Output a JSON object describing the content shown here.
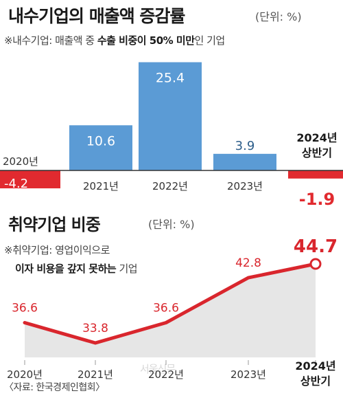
{
  "header": {
    "title1": "내수기업의 매출액 증감률",
    "unit1": "(단위: %)",
    "note1_prefix": "※내수기업: 매출액 중 ",
    "note1_bold": "수출 비중이 50% 미만",
    "note1_suffix": "인 기업",
    "title2": "취약기업 비중",
    "unit2": "(단위: %)",
    "note2_line1": "※취약기업: 영업이익으로",
    "note2_line2_bold": "이자 비용을 갚지 못하는",
    "note2_line2_suffix": " 기업",
    "source": "〈자료: 한국경제인협회〉",
    "watermark": "서울신문"
  },
  "colors": {
    "bar_blue": "#5b9bd5",
    "bar_red": "#e12a2f",
    "line_red": "#d9262d",
    "area_gray": "#e6e6e6",
    "axis": "#333333"
  },
  "chart_data": [
    {
      "type": "bar",
      "title": "내수기업의 매출액 증감률",
      "unit": "(단위: %)",
      "categories": [
        "2020년",
        "2021년",
        "2022년",
        "2023년",
        "2024년 상반기"
      ],
      "values": [
        -4.2,
        10.6,
        25.4,
        3.9,
        -1.9
      ],
      "value_labels": [
        "-4.2",
        "10.6",
        "25.4",
        "3.9",
        "-1.9"
      ],
      "highlight": [
        false,
        false,
        false,
        false,
        true
      ],
      "axis_at": 0,
      "grid": false,
      "legend": "none"
    },
    {
      "type": "area",
      "title": "취약기업 비중",
      "unit": "(단위: %)",
      "categories": [
        "2020년",
        "2021년",
        "2022년",
        "2023년",
        "2024년 상반기"
      ],
      "values": [
        36.6,
        33.8,
        36.6,
        42.8,
        44.7
      ],
      "value_labels": [
        "36.6",
        "33.8",
        "36.6",
        "42.8",
        "44.7"
      ],
      "highlight": [
        false,
        false,
        false,
        false,
        true
      ],
      "grid": false,
      "legend": "none"
    }
  ]
}
